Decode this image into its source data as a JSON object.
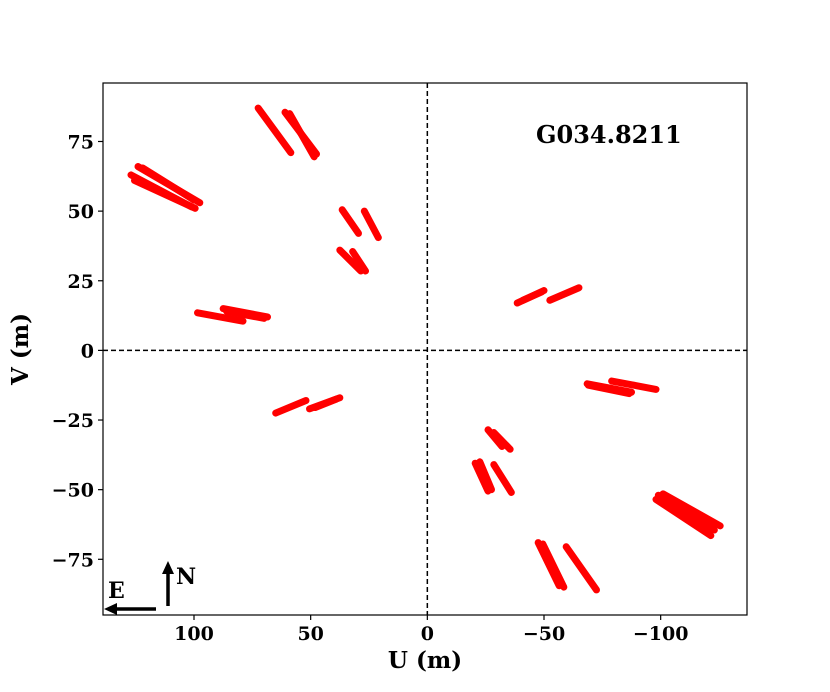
{
  "chart_data": {
    "type": "scatter",
    "xlabel": "U (m)",
    "ylabel": "V (m)",
    "xlim": [
      139,
      -137
    ],
    "ylim": [
      -95,
      96
    ],
    "x_ticks": [
      100,
      50,
      0,
      -50,
      -100
    ],
    "x_tick_labels": [
      "100",
      "50",
      "0",
      "−50",
      "−100"
    ],
    "y_ticks": [
      75,
      50,
      25,
      0,
      -25,
      -50,
      -75
    ],
    "y_tick_labels": [
      "75",
      "50",
      "25",
      "0",
      "−25",
      "−50",
      "−75"
    ],
    "annotation": "G034.8211",
    "grid": false,
    "zero_lines": "dashed",
    "compass": {
      "east": "E",
      "north": "N"
    },
    "series": [
      {
        "color": "#ff0000",
        "tracks": [
          [
            [
              72.5,
              87
            ],
            [
              58.5,
              71
            ]
          ],
          [
            [
              61.0,
              85.5
            ],
            [
              47.5,
              70.5
            ]
          ],
          [
            [
              59.0,
              85.0
            ],
            [
              48.5,
              69.5
            ]
          ],
          [
            [
              124.0,
              66.0
            ],
            [
              97.5,
              53.0
            ]
          ],
          [
            [
              122.0,
              65.5
            ],
            [
              100.0,
              54.0
            ]
          ],
          [
            [
              127.0,
              63.0
            ],
            [
              101.0,
              51.5
            ]
          ],
          [
            [
              125.5,
              61.0
            ],
            [
              99.5,
              51.0
            ]
          ],
          [
            [
              36.5,
              50.5
            ],
            [
              29.5,
              42.0
            ]
          ],
          [
            [
              27.0,
              50.0
            ],
            [
              21.0,
              40.5
            ]
          ],
          [
            [
              37.5,
              36.0
            ],
            [
              28.5,
              28.5
            ]
          ],
          [
            [
              32.0,
              35.5
            ],
            [
              26.5,
              28.5
            ]
          ],
          [
            [
              98.5,
              13.5
            ],
            [
              79.0,
              10.5
            ]
          ],
          [
            [
              87.5,
              15.0
            ],
            [
              68.5,
              12.0
            ]
          ],
          [
            [
              86.0,
              14.0
            ],
            [
              70.0,
              11.5
            ]
          ],
          [
            [
              65.0,
              -22.5
            ],
            [
              52.0,
              -18.0
            ]
          ],
          [
            [
              50.5,
              -21.0
            ],
            [
              37.5,
              -17.0
            ]
          ],
          [
            [
              48.0,
              -20.5
            ],
            [
              39.0,
              -17.5
            ]
          ],
          [
            [
              -38.5,
              17.0
            ],
            [
              -50.0,
              21.5
            ]
          ],
          [
            [
              -41.0,
              18.0
            ],
            [
              -49.0,
              21.0
            ]
          ],
          [
            [
              -52.5,
              18.0
            ],
            [
              -65.0,
              22.5
            ]
          ],
          [
            [
              -68.5,
              -12.0
            ],
            [
              -87.5,
              -15.0
            ]
          ],
          [
            [
              -69.0,
              -12.5
            ],
            [
              -86.5,
              -15.5
            ]
          ],
          [
            [
              -79.0,
              -11.0
            ],
            [
              -98.0,
              -14.0
            ]
          ],
          [
            [
              -26.0,
              -28.5
            ],
            [
              -32.0,
              -34.5
            ]
          ],
          [
            [
              -28.5,
              -29.5
            ],
            [
              -35.5,
              -35.5
            ]
          ],
          [
            [
              -20.5,
              -40.5
            ],
            [
              -26.0,
              -50.5
            ]
          ],
          [
            [
              -22.5,
              -40.0
            ],
            [
              -27.5,
              -50.0
            ]
          ],
          [
            [
              -28.5,
              -41.0
            ],
            [
              -36.0,
              -51.0
            ]
          ],
          [
            [
              -98.0,
              -53.5
            ],
            [
              -121.5,
              -66.5
            ]
          ],
          [
            [
              -99.0,
              -52.0
            ],
            [
              -123.0,
              -64.5
            ]
          ],
          [
            [
              -101.0,
              -51.5
            ],
            [
              -125.5,
              -63.0
            ]
          ],
          [
            [
              -47.5,
              -69.0
            ],
            [
              -56.5,
              -84.5
            ]
          ],
          [
            [
              -49.5,
              -69.5
            ],
            [
              -58.5,
              -85.0
            ]
          ],
          [
            [
              -59.5,
              -70.5
            ],
            [
              -72.5,
              -86.0
            ]
          ]
        ]
      }
    ]
  }
}
